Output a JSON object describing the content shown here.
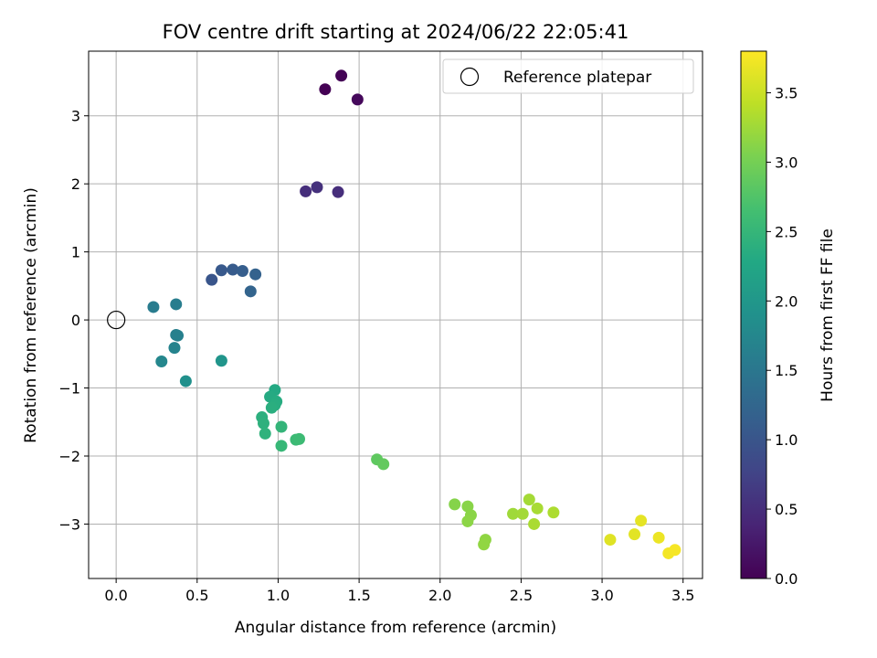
{
  "chart_data": {
    "type": "scatter",
    "title": "FOV centre drift starting at 2024/06/22 22:05:41",
    "xlabel": "Angular distance from reference (arcmin)",
    "ylabel": "Rotation from reference (arcmin)",
    "xlim": [
      -0.17,
      3.62
    ],
    "ylim": [
      -3.8,
      3.95
    ],
    "xticks": [
      "0.0",
      "0.5",
      "1.0",
      "1.5",
      "2.0",
      "2.5",
      "3.0",
      "3.5"
    ],
    "yticks": [
      "-3",
      "-2",
      "-1",
      "0",
      "1",
      "2",
      "3"
    ],
    "grid": true,
    "legend": {
      "position": "top-right",
      "entries": [
        "Reference platepar"
      ]
    },
    "reference": {
      "x": 0,
      "y": 0,
      "label": "Reference platepar"
    },
    "colorbar": {
      "label": "Hours from first FF file",
      "colormap": "viridis",
      "range": [
        0,
        3.8
      ],
      "ticks": [
        "0.0",
        "0.5",
        "1.0",
        "1.5",
        "2.0",
        "2.5",
        "3.0",
        "3.5"
      ]
    },
    "points": [
      {
        "x": 1.29,
        "y": 3.39,
        "t": 0.0
      },
      {
        "x": 1.39,
        "y": 3.59,
        "t": 0.02
      },
      {
        "x": 1.49,
        "y": 3.24,
        "t": 0.08
      },
      {
        "x": 1.17,
        "y": 1.89,
        "t": 0.5
      },
      {
        "x": 1.24,
        "y": 1.95,
        "t": 0.53
      },
      {
        "x": 1.37,
        "y": 1.88,
        "t": 0.5
      },
      {
        "x": 0.59,
        "y": 0.59,
        "t": 1.0
      },
      {
        "x": 0.65,
        "y": 0.73,
        "t": 1.05
      },
      {
        "x": 0.72,
        "y": 0.74,
        "t": 1.08
      },
      {
        "x": 0.78,
        "y": 0.72,
        "t": 1.12
      },
      {
        "x": 0.86,
        "y": 0.67,
        "t": 1.18
      },
      {
        "x": 0.83,
        "y": 0.42,
        "t": 1.22
      },
      {
        "x": 0.23,
        "y": 0.19,
        "t": 1.58
      },
      {
        "x": 0.37,
        "y": 0.23,
        "t": 1.6
      },
      {
        "x": 0.37,
        "y": -0.22,
        "t": 1.62
      },
      {
        "x": 0.38,
        "y": -0.23,
        "t": 1.64
      },
      {
        "x": 0.36,
        "y": -0.41,
        "t": 1.68
      },
      {
        "x": 0.28,
        "y": -0.61,
        "t": 1.75
      },
      {
        "x": 0.43,
        "y": -0.9,
        "t": 1.88
      },
      {
        "x": 0.65,
        "y": -0.6,
        "t": 1.97
      },
      {
        "x": 0.98,
        "y": -1.03,
        "t": 2.3
      },
      {
        "x": 0.95,
        "y": -1.13,
        "t": 2.32
      },
      {
        "x": 0.99,
        "y": -1.2,
        "t": 2.34
      },
      {
        "x": 0.98,
        "y": -1.25,
        "t": 2.36
      },
      {
        "x": 0.96,
        "y": -1.29,
        "t": 2.38
      },
      {
        "x": 0.9,
        "y": -1.43,
        "t": 2.4
      },
      {
        "x": 0.91,
        "y": -1.52,
        "t": 2.42
      },
      {
        "x": 0.92,
        "y": -1.67,
        "t": 2.44
      },
      {
        "x": 1.02,
        "y": -1.57,
        "t": 2.48
      },
      {
        "x": 1.02,
        "y": -1.85,
        "t": 2.52
      },
      {
        "x": 1.11,
        "y": -1.76,
        "t": 2.56
      },
      {
        "x": 1.13,
        "y": -1.75,
        "t": 2.58
      },
      {
        "x": 1.61,
        "y": -2.05,
        "t": 2.85
      },
      {
        "x": 1.65,
        "y": -2.12,
        "t": 2.88
      },
      {
        "x": 2.09,
        "y": -2.71,
        "t": 3.1
      },
      {
        "x": 2.17,
        "y": -2.74,
        "t": 3.12
      },
      {
        "x": 2.19,
        "y": -2.87,
        "t": 3.13
      },
      {
        "x": 2.17,
        "y": -2.96,
        "t": 3.14
      },
      {
        "x": 2.28,
        "y": -3.23,
        "t": 3.16
      },
      {
        "x": 2.27,
        "y": -3.3,
        "t": 3.17
      },
      {
        "x": 2.45,
        "y": -2.85,
        "t": 3.25
      },
      {
        "x": 2.51,
        "y": -2.85,
        "t": 3.27
      },
      {
        "x": 2.55,
        "y": -2.64,
        "t": 3.28
      },
      {
        "x": 2.6,
        "y": -2.77,
        "t": 3.3
      },
      {
        "x": 2.58,
        "y": -3.0,
        "t": 3.31
      },
      {
        "x": 2.7,
        "y": -2.83,
        "t": 3.33
      },
      {
        "x": 3.05,
        "y": -3.23,
        "t": 3.62
      },
      {
        "x": 3.2,
        "y": -3.15,
        "t": 3.64
      },
      {
        "x": 3.24,
        "y": -2.95,
        "t": 3.66
      },
      {
        "x": 3.35,
        "y": -3.2,
        "t": 3.7
      },
      {
        "x": 3.41,
        "y": -3.43,
        "t": 3.74
      },
      {
        "x": 3.45,
        "y": -3.38,
        "t": 3.76
      }
    ]
  }
}
